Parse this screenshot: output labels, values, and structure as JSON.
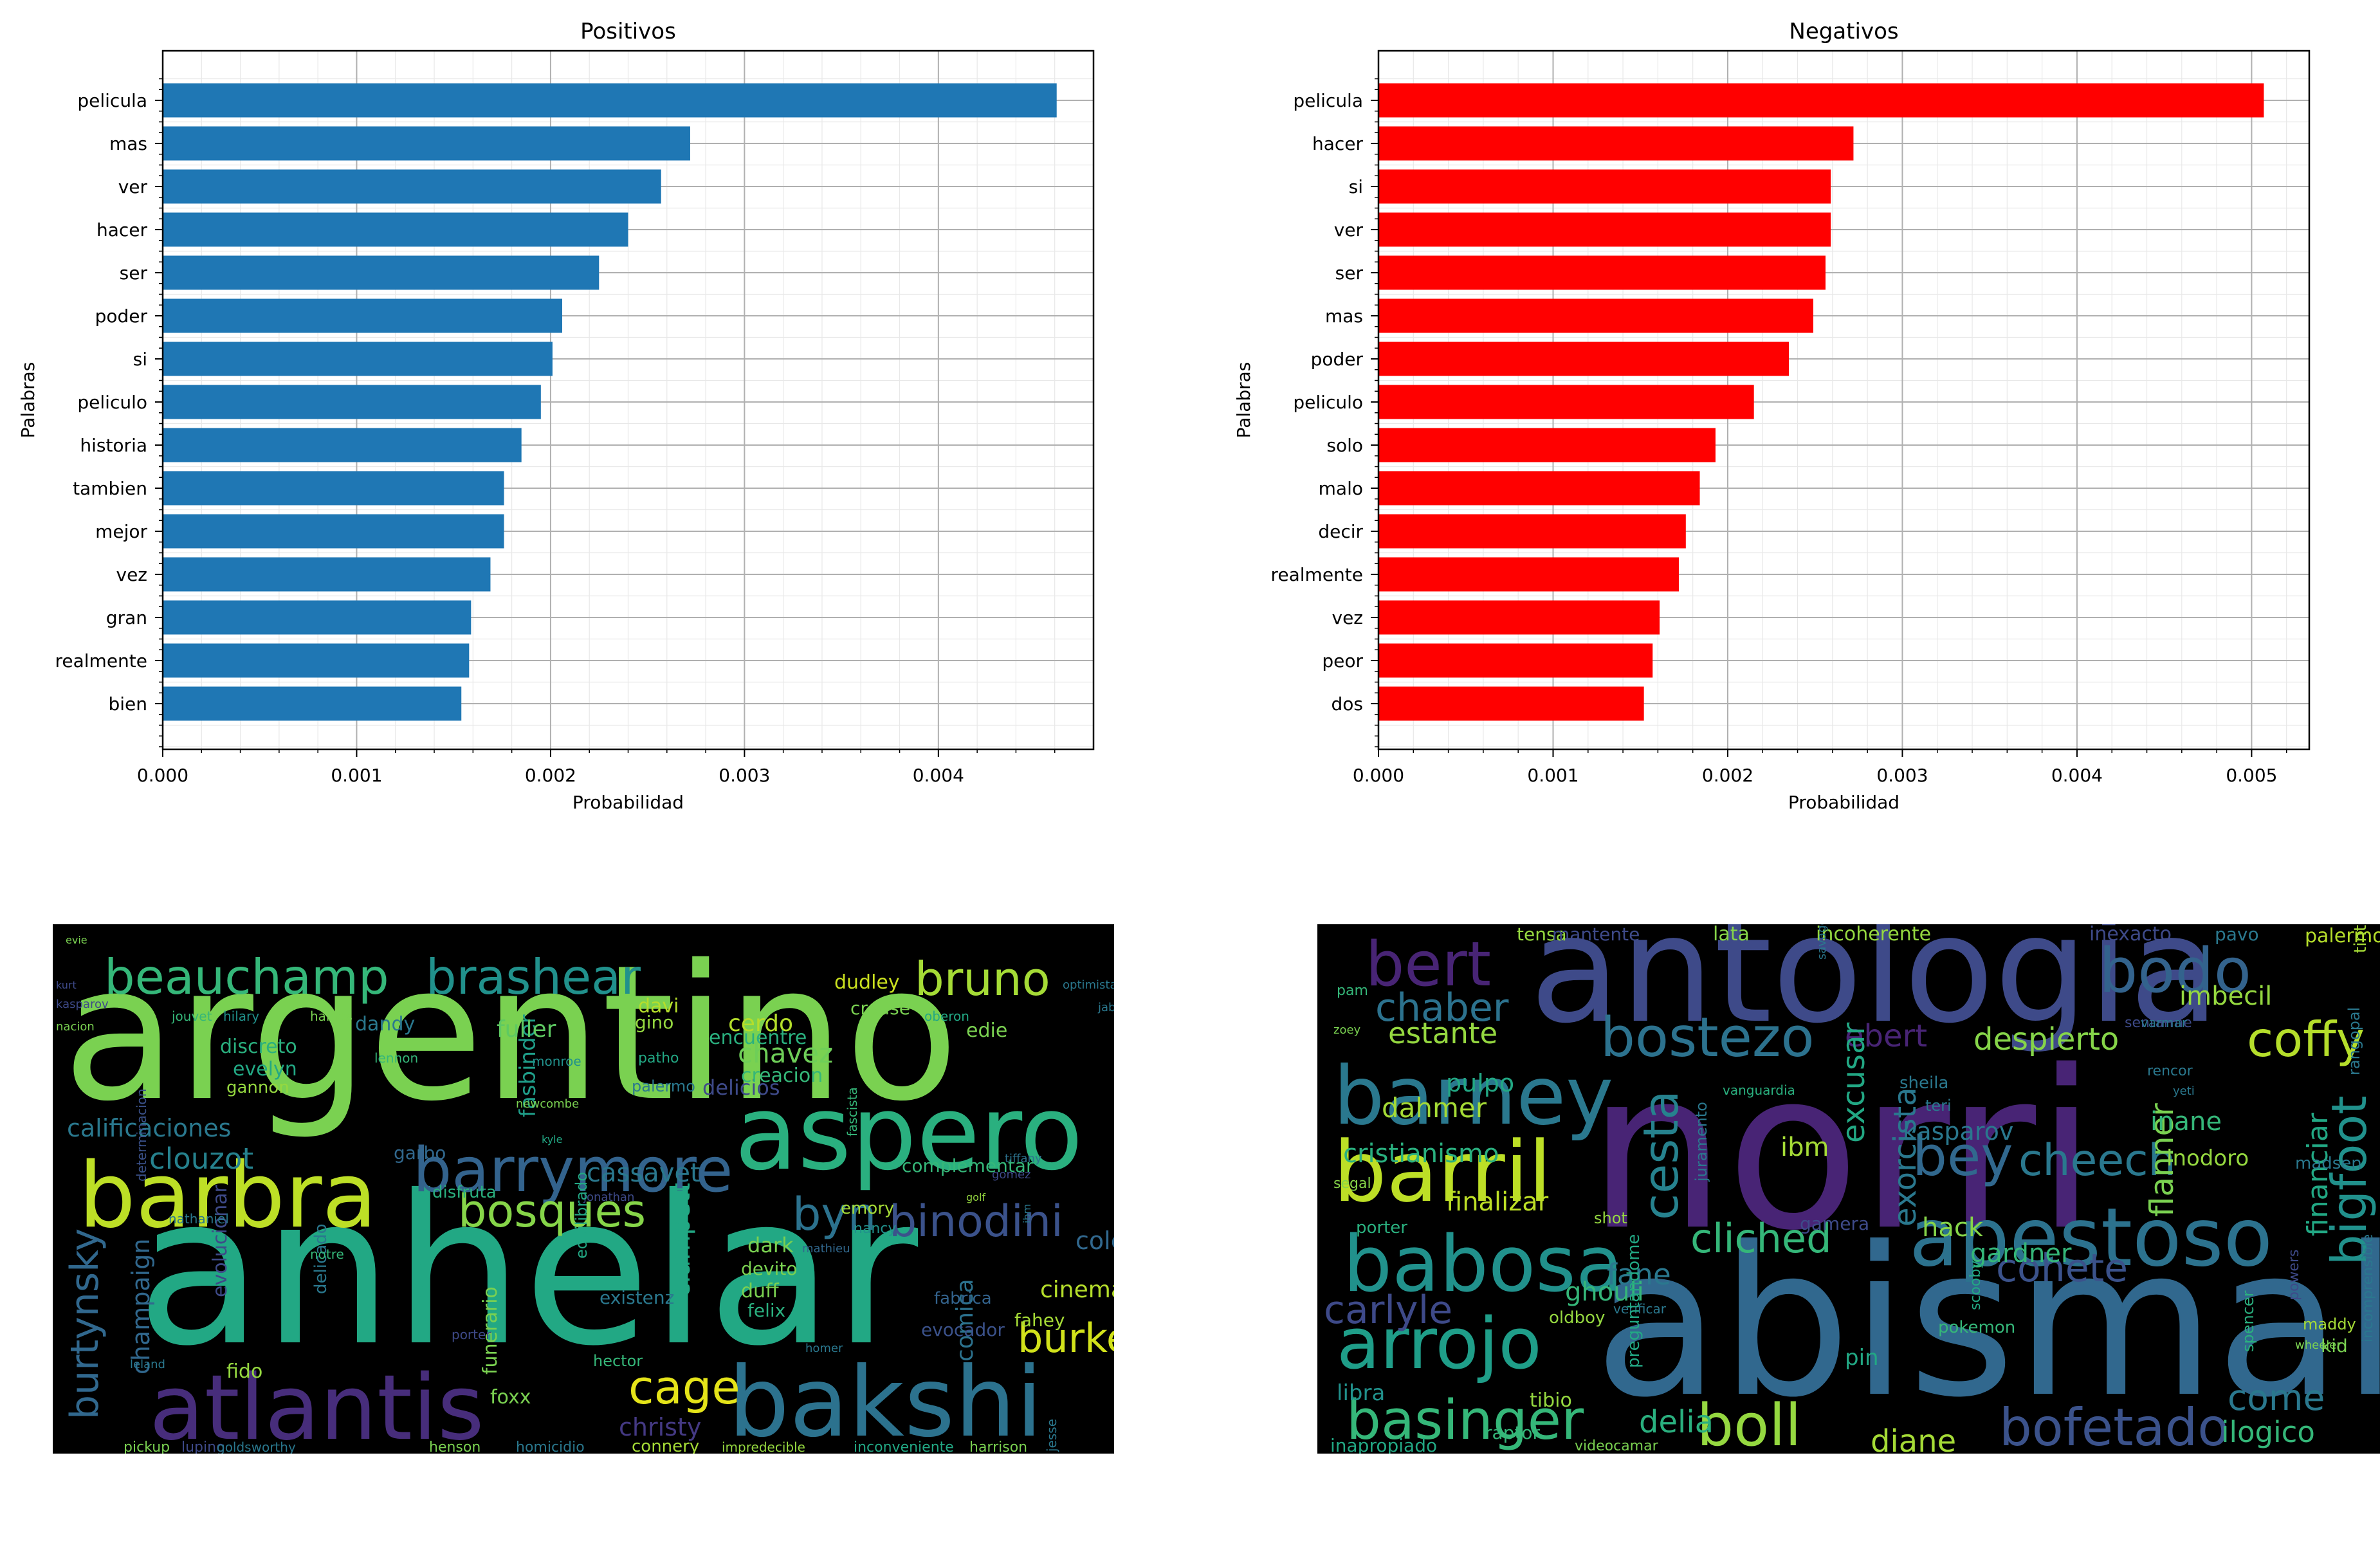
{
  "chart_data": [
    {
      "type": "bar",
      "orientation": "horizontal",
      "title": "Positivos",
      "xlabel": "Probabilidad",
      "ylabel": "Palabras",
      "xlim": [
        0,
        0.0048
      ],
      "xticks": [
        "0.000",
        "0.001",
        "0.002",
        "0.003",
        "0.004"
      ],
      "grid": true,
      "bar_color": "#1f77b4",
      "categories": [
        "pelicula",
        "mas",
        "ver",
        "hacer",
        "ser",
        "poder",
        "si",
        "peliculo",
        "historia",
        "tambien",
        "mejor",
        "vez",
        "gran",
        "realmente",
        "bien"
      ],
      "values": [
        0.00461,
        0.00272,
        0.00257,
        0.0024,
        0.00225,
        0.00206,
        0.00201,
        0.00195,
        0.00185,
        0.00176,
        0.00176,
        0.00169,
        0.00159,
        0.00158,
        0.00154
      ]
    },
    {
      "type": "bar",
      "orientation": "horizontal",
      "title": "Negativos",
      "xlabel": "Probabilidad",
      "ylabel": "Palabras",
      "xlim": [
        0,
        0.00533
      ],
      "xticks": [
        "0.000",
        "0.001",
        "0.002",
        "0.003",
        "0.004",
        "0.005"
      ],
      "grid": true,
      "bar_color": "#ff0000",
      "categories": [
        "pelicula",
        "hacer",
        "si",
        "ver",
        "ser",
        "mas",
        "poder",
        "peliculo",
        "solo",
        "malo",
        "decir",
        "realmente",
        "vez",
        "peor",
        "dos"
      ],
      "values": [
        0.00507,
        0.00272,
        0.00259,
        0.00259,
        0.00256,
        0.00249,
        0.00235,
        0.00215,
        0.00193,
        0.00184,
        0.00176,
        0.00172,
        0.00161,
        0.00157,
        0.00152
      ]
    }
  ],
  "wordclouds": [
    {
      "background": "#000000",
      "words": [
        {
          "t": "argentino",
          "c": "#7ad151"
        },
        {
          "t": "anhelar",
          "c": "#22a884"
        },
        {
          "t": "aspero",
          "c": "#2ab07f"
        },
        {
          "t": "barbra",
          "c": "#bddf26"
        },
        {
          "t": "atlantis",
          "c": "#472d7b"
        },
        {
          "t": "bakshi",
          "c": "#2c728e"
        },
        {
          "t": "barrymore",
          "c": "#33638d"
        },
        {
          "t": "beauchamp",
          "c": "#35b779"
        },
        {
          "t": "brashear",
          "c": "#21918c"
        },
        {
          "t": "bruno",
          "c": "#a5db36"
        },
        {
          "t": "bosques",
          "c": "#86d549"
        },
        {
          "t": "binodini",
          "c": "#3b528b"
        },
        {
          "t": "byn",
          "c": "#2c728e"
        },
        {
          "t": "burtynsky",
          "c": "#31688e"
        },
        {
          "t": "burke",
          "c": "#d2e21b"
        },
        {
          "t": "cage",
          "c": "#e5e419"
        },
        {
          "t": "calificaciones",
          "c": "#2a788e"
        },
        {
          "t": "clouzot",
          "c": "#26828e"
        },
        {
          "t": "chavez",
          "c": "#6ece58"
        },
        {
          "t": "cassavet",
          "c": "#2a788e"
        },
        {
          "t": "christy",
          "c": "#443983"
        },
        {
          "t": "cinema",
          "c": "#b5de2b"
        },
        {
          "t": "cole",
          "c": "#31688e"
        },
        {
          "t": "clampett",
          "c": "#22a884"
        },
        {
          "t": "champaign",
          "c": "#31688e"
        },
        {
          "t": "fasbinder",
          "c": "#1f9e89"
        },
        {
          "t": "comica",
          "c": "#2c728e"
        },
        {
          "t": "evolucionar",
          "c": "#3e4a89"
        },
        {
          "t": "fuller",
          "c": "#5ec962"
        },
        {
          "t": "dandy",
          "c": "#2a788e"
        },
        {
          "t": "davi",
          "c": "#b5de2b"
        },
        {
          "t": "dudley",
          "c": "#cae11f"
        },
        {
          "t": "cerdo",
          "c": "#b5de2b"
        },
        {
          "t": "crouse",
          "c": "#7ad151"
        },
        {
          "t": "gino",
          "c": "#95d840"
        },
        {
          "t": "encuentre",
          "c": "#2ab07f"
        },
        {
          "t": "delicios",
          "c": "#3e4a89"
        },
        {
          "t": "creacion",
          "c": "#35b779"
        },
        {
          "t": "discreto",
          "c": "#2ab07f"
        },
        {
          "t": "evelyn",
          "c": "#22a884"
        },
        {
          "t": "gannon",
          "c": "#95d840"
        },
        {
          "t": "edie",
          "c": "#7ad151"
        },
        {
          "t": "dark",
          "c": "#7ad151"
        },
        {
          "t": "devito",
          "c": "#7ad151"
        },
        {
          "t": "duff",
          "c": "#7ad151"
        },
        {
          "t": "felix",
          "c": "#2ab07f"
        },
        {
          "t": "emory",
          "c": "#a5db36"
        },
        {
          "t": "nancy",
          "c": "#21918c"
        },
        {
          "t": "funerario",
          "c": "#7ad151"
        },
        {
          "t": "existenz",
          "c": "#2a788e"
        },
        {
          "t": "fabrica",
          "c": "#33638d"
        },
        {
          "t": "fahey",
          "c": "#a5db36"
        },
        {
          "t": "evocador",
          "c": "#3b528b"
        },
        {
          "t": "complementar",
          "c": "#35b779"
        },
        {
          "t": "fido",
          "c": "#95d840"
        },
        {
          "t": "foxx",
          "c": "#7ad151"
        },
        {
          "t": "connery",
          "c": "#a5db36"
        },
        {
          "t": "garbo",
          "c": "#31688e"
        },
        {
          "t": "disfruta",
          "c": "#2ab07f"
        },
        {
          "t": "delicado",
          "c": "#2a788e"
        },
        {
          "t": "pickup",
          "c": "#7ad151"
        },
        {
          "t": "lupino",
          "c": "#3e4a89"
        },
        {
          "t": "goldsworthy",
          "c": "#2a788e"
        },
        {
          "t": "henson",
          "c": "#7ad151"
        },
        {
          "t": "homicidio",
          "c": "#2a788e"
        },
        {
          "t": "impredecible",
          "c": "#95d840"
        },
        {
          "t": "inconveniente",
          "c": "#22a884"
        },
        {
          "t": "harrison",
          "c": "#7ad151"
        },
        {
          "t": "jesse",
          "c": "#2a788e"
        },
        {
          "t": "jonathan",
          "c": "#3e4a89"
        },
        {
          "t": "hector",
          "c": "#35b779"
        },
        {
          "t": "kasparov",
          "c": "#3e4a89"
        },
        {
          "t": "jouvet",
          "c": "#35b779"
        },
        {
          "t": "hilary",
          "c": "#21918c"
        },
        {
          "t": "haines",
          "c": "#7ad151"
        },
        {
          "t": "nacion",
          "c": "#7ad151"
        },
        {
          "t": "notre",
          "c": "#35b779"
        },
        {
          "t": "lennon",
          "c": "#35b779"
        },
        {
          "t": "jabba",
          "c": "#2a788e"
        },
        {
          "t": "oberon",
          "c": "#22a884"
        },
        {
          "t": "patho",
          "c": "#22a884"
        },
        {
          "t": "monroe",
          "c": "#21918c"
        },
        {
          "t": "nathaniel",
          "c": "#2a788e"
        },
        {
          "t": "mathieu",
          "c": "#31688e"
        },
        {
          "t": "homer",
          "c": "#2a788e"
        },
        {
          "t": "porter",
          "c": "#3e4a89"
        },
        {
          "t": "equilibrado",
          "c": "#22a884"
        },
        {
          "t": "delicadamente",
          "c": "#22a884"
        },
        {
          "t": "determinacion",
          "c": "#3b528b"
        },
        {
          "t": "fascista",
          "c": "#35b779"
        },
        {
          "t": "optimista",
          "c": "#2a788e"
        },
        {
          "t": "kurt",
          "c": "#3e4a89"
        },
        {
          "t": "golf",
          "c": "#95d840"
        },
        {
          "t": "tiffany",
          "c": "#2c728e"
        },
        {
          "t": "gomez",
          "c": "#3e4a89"
        },
        {
          "t": "ibm",
          "c": "#2a788e"
        },
        {
          "t": "kyle",
          "c": "#22a884"
        },
        {
          "t": "leland",
          "c": "#2a788e"
        },
        {
          "t": "newcombe",
          "c": "#7ad151"
        },
        {
          "t": "palermo",
          "c": "#2a788e"
        },
        {
          "t": "evie",
          "c": "#7ad151"
        }
      ]
    },
    {
      "background": "#000000",
      "words": [
        {
          "t": "norri",
          "c": "#482475"
        },
        {
          "t": "abismal",
          "c": "#31688e"
        },
        {
          "t": "antologia",
          "c": "#3e4a89"
        },
        {
          "t": "apestoso",
          "c": "#2c728e"
        },
        {
          "t": "barril",
          "c": "#bddf26"
        },
        {
          "t": "barney",
          "c": "#2a788e"
        },
        {
          "t": "babosa",
          "c": "#21918c"
        },
        {
          "t": "arrojo",
          "c": "#1f9e89"
        },
        {
          "t": "bert",
          "c": "#482475"
        },
        {
          "t": "bodo",
          "c": "#33638d"
        },
        {
          "t": "bostezo",
          "c": "#2c728e"
        },
        {
          "t": "bigfoot",
          "c": "#21918c"
        },
        {
          "t": "coffy",
          "c": "#b5de2b"
        },
        {
          "t": "boll",
          "c": "#95d840"
        },
        {
          "t": "bofetado",
          "c": "#3b528b"
        },
        {
          "t": "basinger",
          "c": "#35b779"
        },
        {
          "t": "bey",
          "c": "#31688e"
        },
        {
          "t": "cheech",
          "c": "#2a788e"
        },
        {
          "t": "chaber",
          "c": "#2c728e"
        },
        {
          "t": "cesta",
          "c": "#26828e"
        },
        {
          "t": "carlyle",
          "c": "#3e4a89"
        },
        {
          "t": "cliched",
          "c": "#35b779"
        },
        {
          "t": "cohete",
          "c": "#3b528b"
        },
        {
          "t": "estante",
          "c": "#95d840"
        },
        {
          "t": "despierto",
          "c": "#86d549"
        },
        {
          "t": "ebert",
          "c": "#482475"
        },
        {
          "t": "excusar",
          "c": "#22a884"
        },
        {
          "t": "exorcista",
          "c": "#2a788e"
        },
        {
          "t": "dahmer",
          "c": "#a5db36"
        },
        {
          "t": "cristianismo",
          "c": "#2ab07f"
        },
        {
          "t": "finalizar",
          "c": "#bddf26"
        },
        {
          "t": "fane",
          "c": "#2a788e"
        },
        {
          "t": "ghouli",
          "c": "#35b779"
        },
        {
          "t": "delia",
          "c": "#2ab07f"
        },
        {
          "t": "diane",
          "c": "#a5db36"
        },
        {
          "t": "come",
          "c": "#2a788e"
        },
        {
          "t": "ilogico",
          "c": "#35b779"
        },
        {
          "t": "flanner",
          "c": "#7ad151"
        },
        {
          "t": "financiar",
          "c": "#22a884"
        },
        {
          "t": "gardner",
          "c": "#35b779"
        },
        {
          "t": "hack",
          "c": "#86d549"
        },
        {
          "t": "kasparov",
          "c": "#2a788e"
        },
        {
          "t": "inane",
          "c": "#35b779"
        },
        {
          "t": "imbecil",
          "c": "#95d840"
        },
        {
          "t": "inodoro",
          "c": "#95d840"
        },
        {
          "t": "ibm",
          "c": "#a5db36"
        },
        {
          "t": "pin",
          "c": "#22a884"
        },
        {
          "t": "libra",
          "c": "#21918c"
        },
        {
          "t": "tibio",
          "c": "#95d840"
        },
        {
          "t": "raptor",
          "c": "#35b779"
        },
        {
          "t": "inapropiado",
          "c": "#22a884"
        },
        {
          "t": "videocamar",
          "c": "#7ad151"
        },
        {
          "t": "pulpo",
          "c": "#22a884"
        },
        {
          "t": "tensa",
          "c": "#95d840"
        },
        {
          "t": "mantente",
          "c": "#3e4a89"
        },
        {
          "t": "lata",
          "c": "#86d549"
        },
        {
          "t": "incoherente",
          "c": "#95d840"
        },
        {
          "t": "inexacto",
          "c": "#3e4a89"
        },
        {
          "t": "pavo",
          "c": "#2a788e"
        },
        {
          "t": "palermo",
          "c": "#b5de2b"
        },
        {
          "t": "tintin",
          "c": "#a5db36"
        },
        {
          "t": "pam",
          "c": "#35b779"
        },
        {
          "t": "segal",
          "c": "#86d549"
        },
        {
          "t": "porter",
          "c": "#2ab07f"
        },
        {
          "t": "shot",
          "c": "#95d840"
        },
        {
          "t": "oldboy",
          "c": "#95d840"
        },
        {
          "t": "sheila",
          "c": "#2a788e"
        },
        {
          "t": "teri",
          "c": "#2a788e"
        },
        {
          "t": "madsen",
          "c": "#2a788e"
        },
        {
          "t": "maddy",
          "c": "#a5db36"
        },
        {
          "t": "kid",
          "c": "#7ad151"
        },
        {
          "t": "spencer",
          "c": "#2ab07f"
        },
        {
          "t": "powers",
          "c": "#3e4a89"
        },
        {
          "t": "pokemon",
          "c": "#35b779"
        },
        {
          "t": "gamera",
          "c": "#3e4a89"
        },
        {
          "t": "verificar",
          "c": "#2a788e"
        },
        {
          "t": "preguntandome",
          "c": "#22a884"
        },
        {
          "t": "juramento",
          "c": "#2a788e"
        },
        {
          "t": "vanguardia",
          "c": "#2ab07f"
        },
        {
          "t": "rencor",
          "c": "#2a788e"
        },
        {
          "t": "sentarme",
          "c": "#3e4a89"
        },
        {
          "t": "scooby",
          "c": "#22a884"
        },
        {
          "t": "incomprensible",
          "c": "#2a788e"
        },
        {
          "t": "rangopal",
          "c": "#2a788e"
        },
        {
          "t": "wheeler",
          "c": "#7ad151"
        },
        {
          "t": "savage",
          "c": "#2a788e"
        },
        {
          "t": "zoey",
          "c": "#7ad151"
        },
        {
          "t": "yeti",
          "c": "#2a788e"
        },
        {
          "t": "varmar",
          "c": "#2a788e"
        }
      ]
    }
  ]
}
